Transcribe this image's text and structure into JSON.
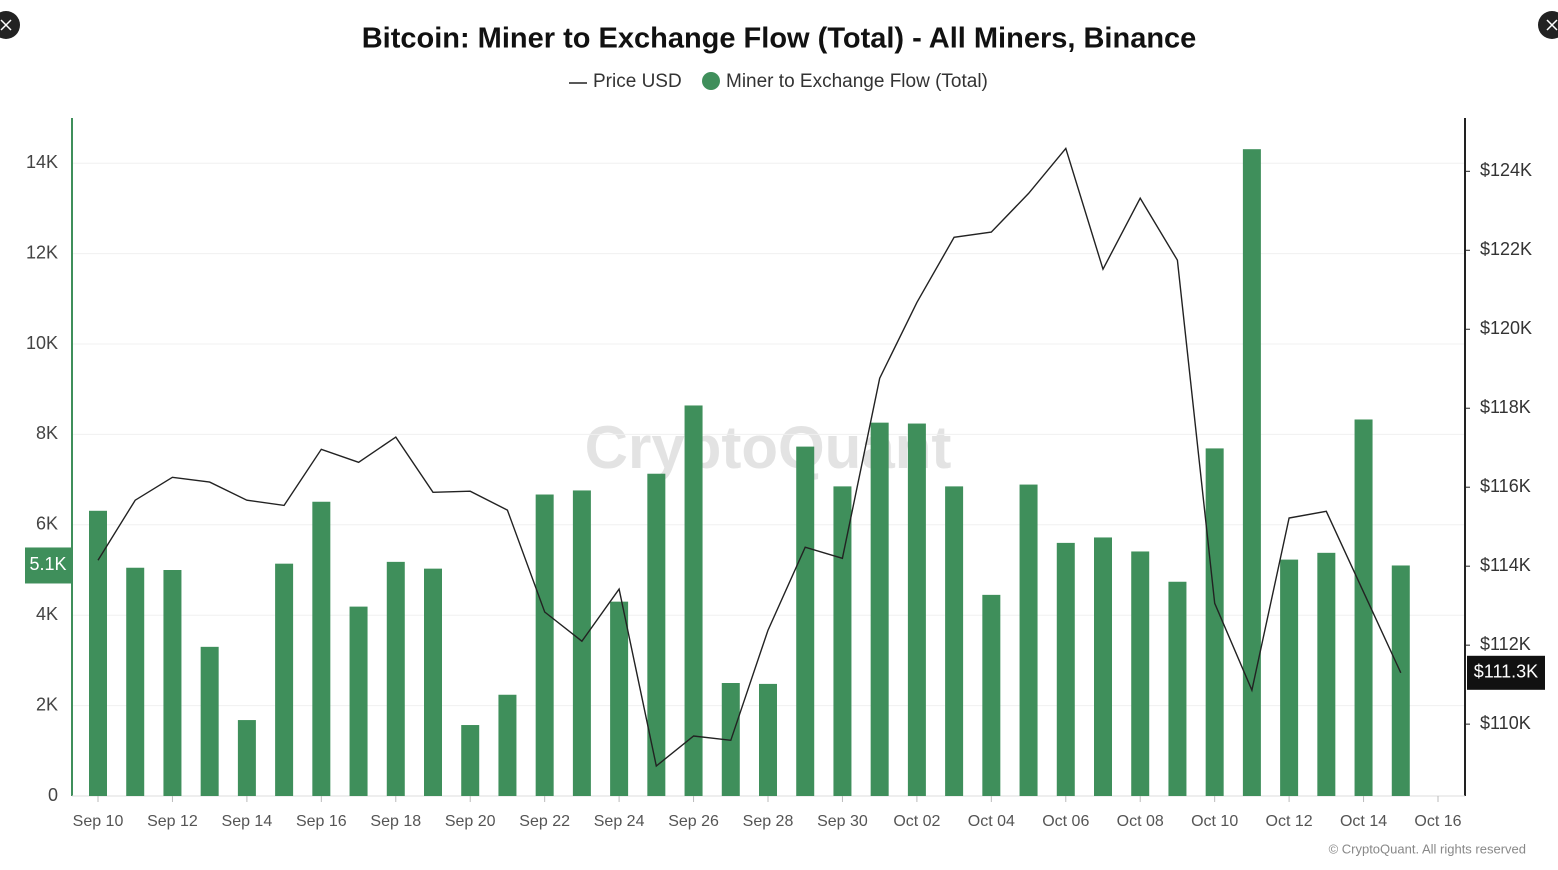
{
  "chart_data": {
    "type": "bar",
    "title": "Bitcoin: Miner to Exchange Flow (Total) - All Miners, Binance",
    "categories": [
      "Sep 10",
      null,
      "Sep 12",
      null,
      "Sep 14",
      null,
      "Sep 16",
      null,
      "Sep 18",
      null,
      "Sep 20",
      null,
      "Sep 22",
      null,
      "Sep 24",
      null,
      "Sep 26",
      null,
      "Sep 28",
      null,
      "Sep 30",
      null,
      "Oct 02",
      null,
      "Oct 04",
      null,
      "Oct 06",
      null,
      "Oct 08",
      null,
      "Oct 10",
      null,
      "Oct 12",
      null,
      "Oct 14",
      null,
      "Oct 16"
    ],
    "series": [
      {
        "name": "Price USD",
        "type": "line",
        "axis": "y2",
        "color": "#222222",
        "values": [
          114150,
          115670,
          116250,
          116130,
          115670,
          115540,
          116960,
          116630,
          117270,
          115870,
          115900,
          115420,
          112840,
          112100,
          113420,
          108940,
          109700,
          109590,
          112380,
          114480,
          114200,
          118760,
          120680,
          122330,
          122460,
          123440,
          124580,
          121520,
          123320,
          121750,
          113060,
          110860,
          115220,
          115390,
          113340,
          111300,
          null
        ]
      },
      {
        "name": "Miner to Exchange Flow (Total)",
        "type": "bar",
        "color": "#3f8f5b",
        "values": [
          6310,
          5050,
          5000,
          3300,
          1680,
          5140,
          6510,
          4190,
          5180,
          5030,
          1570,
          2240,
          6670,
          6760,
          4300,
          7130,
          8640,
          2500,
          2480,
          7730,
          6850,
          8260,
          8240,
          6850,
          4450,
          6890,
          5600,
          5720,
          5410,
          4740,
          7690,
          14310,
          5230,
          5380,
          8330,
          5100,
          null
        ]
      }
    ],
    "ylim": [
      0,
      15000
    ],
    "yticks": [
      0,
      {
        "value": 2000,
        "label": "2K"
      },
      {
        "value": 4000,
        "label": "4K"
      },
      {
        "value": 6000,
        "label": "6K"
      },
      {
        "value": 8000,
        "label": "8K"
      },
      {
        "value": 10000,
        "label": "10K"
      },
      {
        "value": 12000,
        "label": "12K"
      },
      {
        "value": 14000,
        "label": "14K"
      }
    ],
    "y2lim": [
      108180,
      125350
    ],
    "y2ticks": [
      {
        "value": 110000,
        "label": "$110K"
      },
      {
        "value": 112000,
        "label": "$112K"
      },
      {
        "value": 114000,
        "label": "$114K"
      },
      {
        "value": 116000,
        "label": "$116K"
      },
      {
        "value": 118000,
        "label": "$118K"
      },
      {
        "value": 120000,
        "label": "$120K"
      },
      {
        "value": 122000,
        "label": "$122K"
      },
      {
        "value": 124000,
        "label": "$124K"
      }
    ],
    "grid": true,
    "annotations": [
      {
        "label": "5.1K",
        "value": 5100,
        "axis": "y"
      },
      {
        "label": "$111.3K",
        "value": 111300,
        "axis": "y2"
      }
    ],
    "watermark": "CryptoQuant",
    "credit": "© CryptoQuant. All rights reserved"
  }
}
